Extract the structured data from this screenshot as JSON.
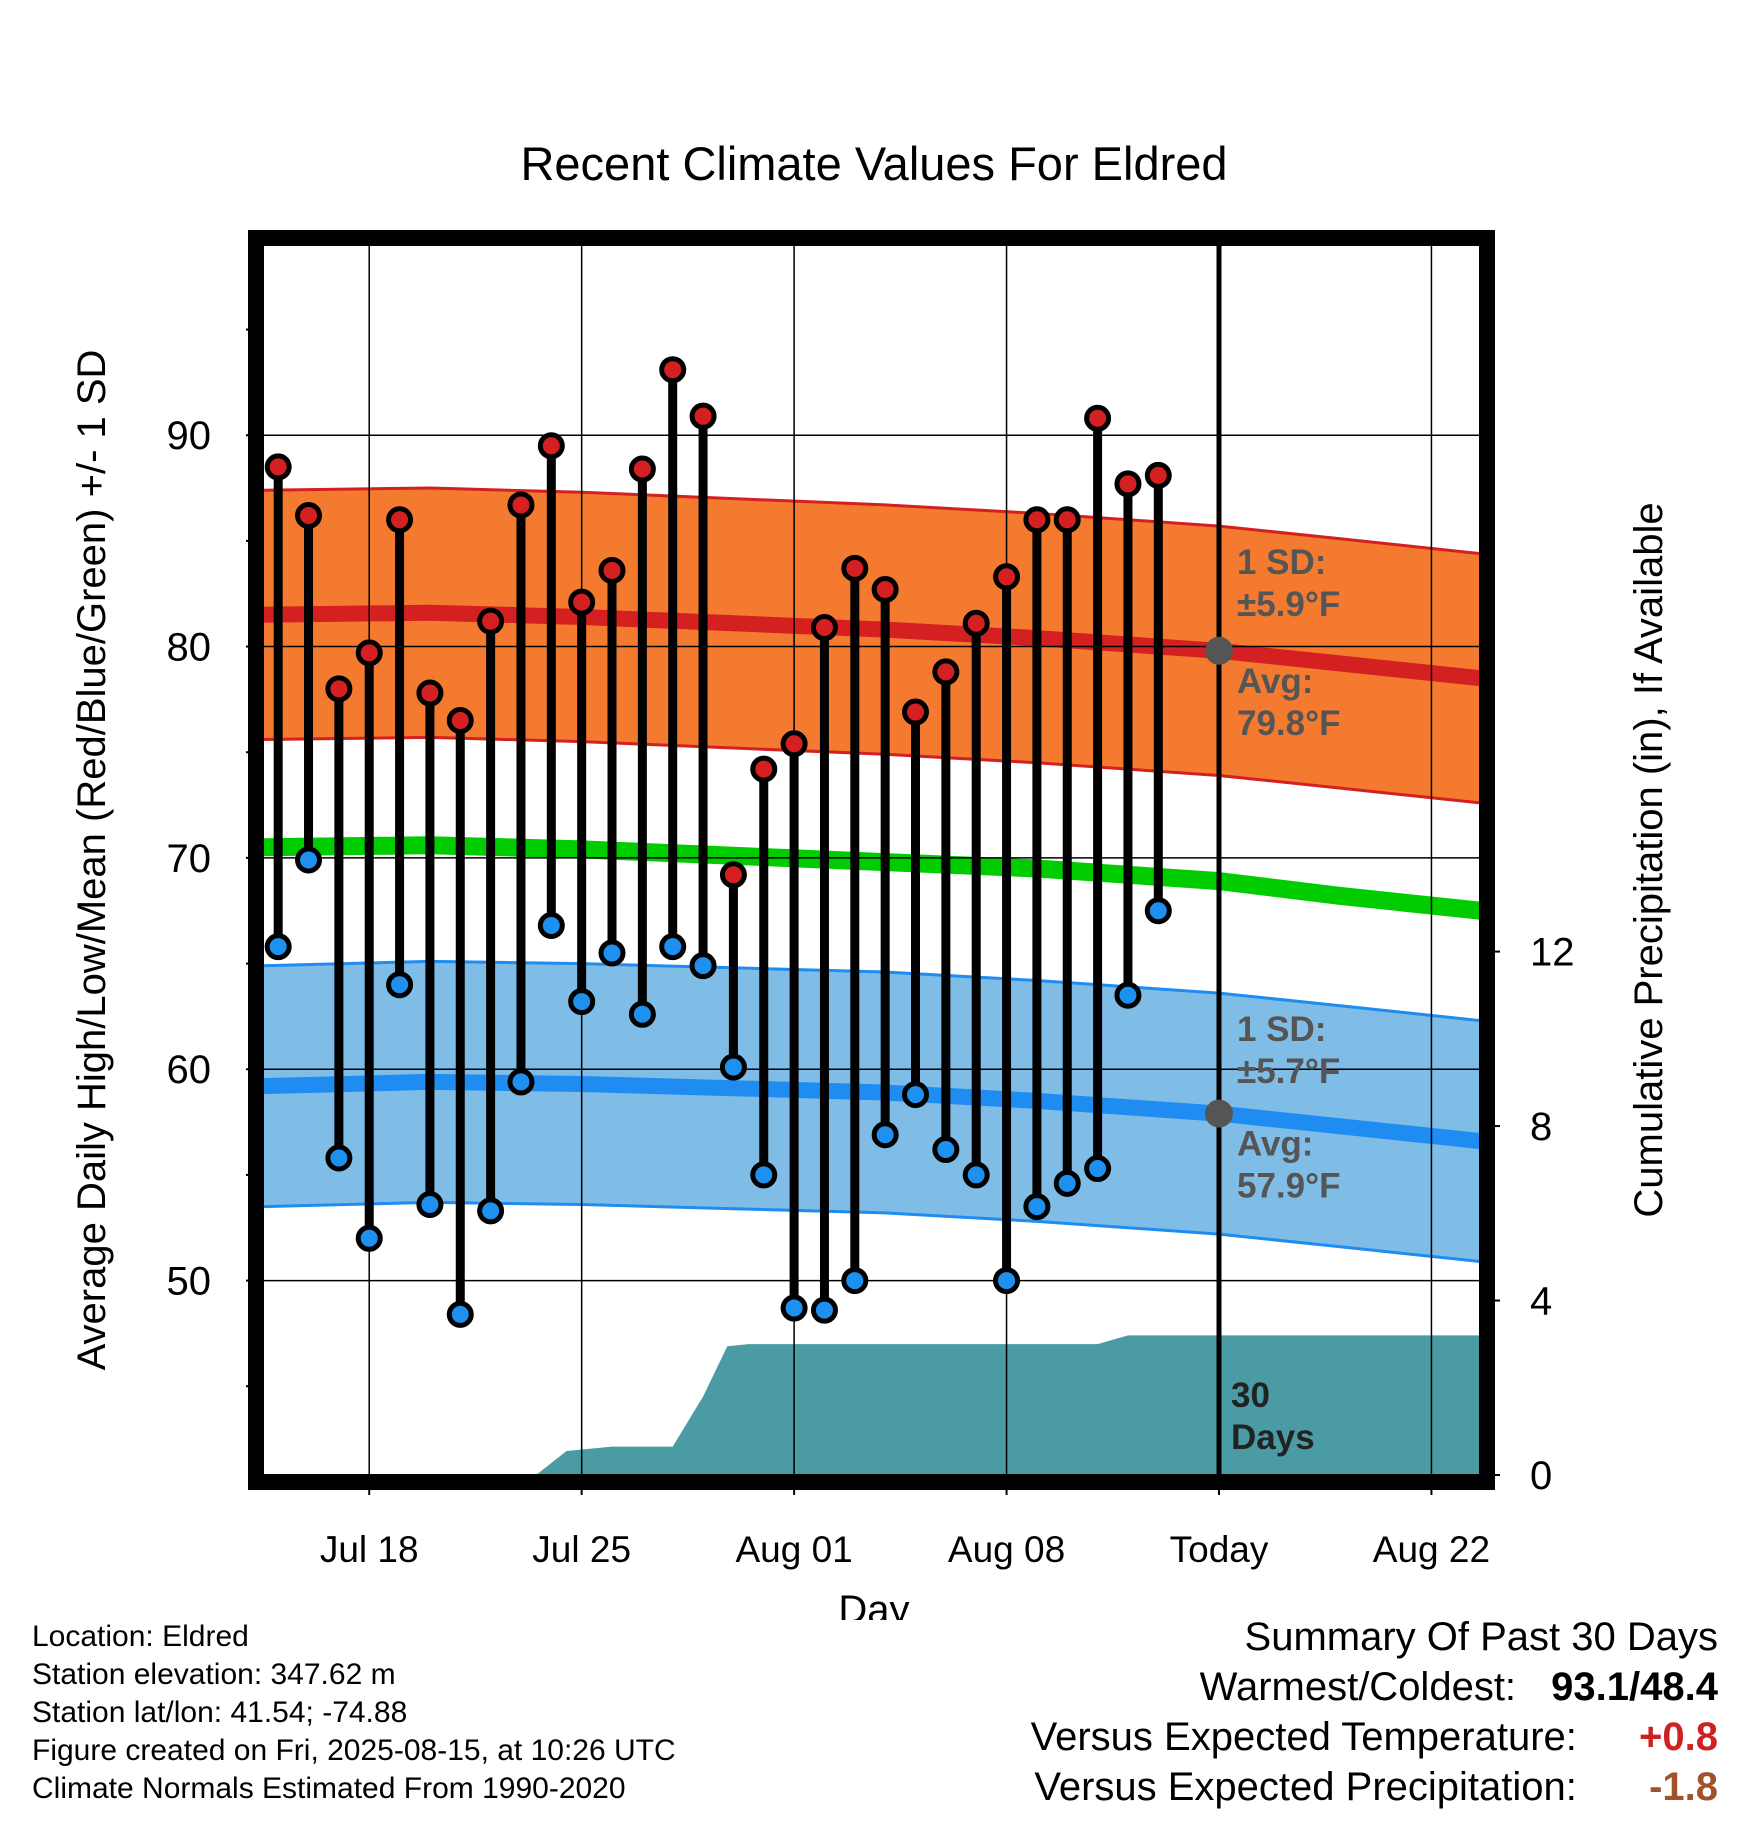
{
  "title": "Recent Climate Values For Eldred",
  "left_axis_label": "Average Daily High/Low/Mean (Red/Blue/Green) +/- 1 SD",
  "right_axis_label": "Cumulative Precipitation (in), If Available",
  "x_axis_label": "Day",
  "colors": {
    "high_band": "#f47a2f",
    "high_line": "#d42020",
    "low_band": "#7fbde6",
    "low_line": "#1e8cf0",
    "mean_line": "#00cc00",
    "precip": "#4a9ba3",
    "high_dot": "#d42020",
    "low_dot": "#1e90f0",
    "positive": "#cc2222",
    "negative": "#a0522d"
  },
  "chart_data": {
    "type": "line",
    "x_ticks": [
      "Jul 18",
      "Jul 25",
      "Aug 01",
      "Aug 08",
      "Today",
      "Aug 22"
    ],
    "x_tick_days": [
      3,
      10,
      17,
      24,
      31,
      38
    ],
    "xlim": [
      -0.5,
      39.6
    ],
    "ylim": [
      40.8,
      99.0
    ],
    "y_ticks": [
      50,
      60,
      70,
      80,
      90
    ],
    "precip_ylim": [
      0,
      28.2
    ],
    "precip_ticks": [
      0,
      4,
      8,
      12
    ],
    "days": [
      0,
      1,
      2,
      3,
      4,
      5,
      6,
      7,
      8,
      9,
      10,
      11,
      12,
      13,
      14,
      15,
      16,
      17,
      18,
      19,
      20,
      21,
      22,
      23,
      24,
      25,
      26,
      27,
      28,
      29
    ],
    "highs": [
      88.5,
      86.2,
      78.0,
      79.7,
      86.0,
      77.8,
      76.5,
      81.2,
      86.7,
      89.5,
      82.1,
      83.6,
      88.4,
      93.1,
      90.9,
      69.2,
      74.2,
      75.4,
      80.9,
      83.7,
      82.7,
      76.9,
      78.8,
      81.1,
      83.3,
      86.0,
      86.0,
      90.8,
      87.7,
      88.1
    ],
    "lows": [
      65.8,
      69.9,
      55.8,
      52.0,
      64.0,
      53.6,
      48.4,
      53.3,
      59.4,
      66.8,
      63.2,
      65.5,
      62.6,
      65.8,
      64.9,
      60.1,
      55.0,
      48.7,
      48.6,
      50.0,
      56.9,
      58.8,
      56.2,
      55.0,
      50.0,
      53.5,
      54.6,
      55.3,
      63.5,
      67.5
    ],
    "normal_high": [
      {
        "x": -0.5,
        "avg": 81.5,
        "sd": 5.9
      },
      {
        "x": 5,
        "avg": 81.6,
        "sd": 5.9
      },
      {
        "x": 10,
        "avg": 81.4,
        "sd": 5.9
      },
      {
        "x": 15,
        "avg": 81.1,
        "sd": 5.9
      },
      {
        "x": 20,
        "avg": 80.8,
        "sd": 5.9
      },
      {
        "x": 25,
        "avg": 80.4,
        "sd": 5.9
      },
      {
        "x": 31,
        "avg": 79.8,
        "sd": 5.9
      },
      {
        "x": 35,
        "avg": 79.2,
        "sd": 5.9
      },
      {
        "x": 39.6,
        "avg": 78.5,
        "sd": 5.9
      }
    ],
    "normal_low": [
      {
        "x": -0.5,
        "avg": 59.2,
        "sd": 5.7
      },
      {
        "x": 5,
        "avg": 59.4,
        "sd": 5.7
      },
      {
        "x": 10,
        "avg": 59.3,
        "sd": 5.7
      },
      {
        "x": 15,
        "avg": 59.1,
        "sd": 5.7
      },
      {
        "x": 20,
        "avg": 58.9,
        "sd": 5.7
      },
      {
        "x": 25,
        "avg": 58.5,
        "sd": 5.7
      },
      {
        "x": 31,
        "avg": 57.9,
        "sd": 5.7
      },
      {
        "x": 35,
        "avg": 57.3,
        "sd": 5.7
      },
      {
        "x": 39.6,
        "avg": 56.6,
        "sd": 5.7
      }
    ],
    "normal_mean": [
      {
        "x": -0.5,
        "avg": 70.5
      },
      {
        "x": 5,
        "avg": 70.6
      },
      {
        "x": 10,
        "avg": 70.4
      },
      {
        "x": 15,
        "avg": 70.1
      },
      {
        "x": 20,
        "avg": 69.8
      },
      {
        "x": 25,
        "avg": 69.5
      },
      {
        "x": 31,
        "avg": 68.9
      },
      {
        "x": 35,
        "avg": 68.2
      },
      {
        "x": 39.6,
        "avg": 67.5
      }
    ],
    "precip_cumulative": [
      {
        "x": 8.5,
        "y": 0
      },
      {
        "x": 9.5,
        "y": 0.55
      },
      {
        "x": 11,
        "y": 0.65
      },
      {
        "x": 13,
        "y": 0.65
      },
      {
        "x": 14,
        "y": 1.8
      },
      {
        "x": 14.8,
        "y": 2.95
      },
      {
        "x": 15.5,
        "y": 3.0
      },
      {
        "x": 27,
        "y": 3.0
      },
      {
        "x": 28,
        "y": 3.2
      },
      {
        "x": 39.6,
        "y": 3.2
      }
    ],
    "today_day": 31,
    "high_sd_label": [
      "1 SD:",
      "±5.9°F"
    ],
    "high_avg_label": [
      "Avg:",
      "79.8°F"
    ],
    "low_sd_label": [
      "1 SD:",
      "±5.7°F"
    ],
    "low_avg_label": [
      "Avg:",
      "57.9°F"
    ],
    "period_label": [
      "30",
      "Days"
    ]
  },
  "footer": {
    "location": "Location: Eldred",
    "elevation": "Station elevation: 347.62 m",
    "latlon": "Station lat/lon: 41.54; -74.88",
    "created": "Figure created on Fri, 2025-08-15, at 10:26 UTC",
    "normals": "Climate Normals Estimated From 1990-2020"
  },
  "summary": {
    "heading": "Summary Of Past 30 Days",
    "warm_cold_label": "Warmest/Coldest:",
    "warm_cold_value": "93.1/48.4",
    "temp_label": "Versus Expected Temperature:",
    "temp_value": "+0.8",
    "precip_label": "Versus Expected Precipitation:",
    "precip_value": "-1.8"
  }
}
